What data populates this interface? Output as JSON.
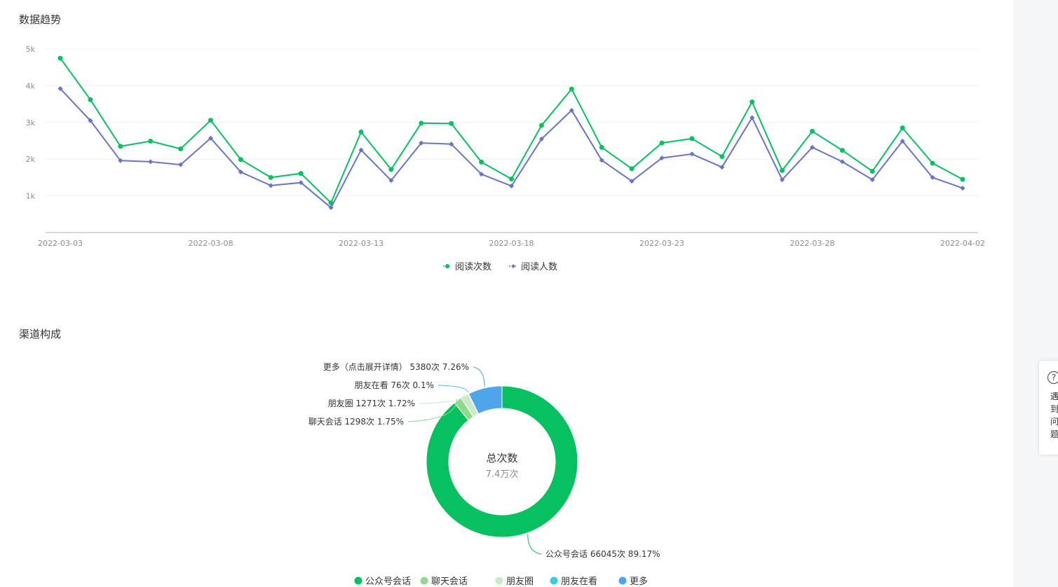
{
  "trend": {
    "title": "数据趋势"
  },
  "channel": {
    "title": "渠道构成"
  },
  "help": {
    "text": "遇到问题"
  },
  "chart_data": [
    {
      "type": "line",
      "y_ticks": [
        "1k",
        "2k",
        "3k",
        "4k",
        "5k"
      ],
      "ylim": [
        0,
        5000
      ],
      "x": [
        "2022-03-03",
        "2022-03-04",
        "2022-03-05",
        "2022-03-06",
        "2022-03-07",
        "2022-03-08",
        "2022-03-09",
        "2022-03-10",
        "2022-03-11",
        "2022-03-12",
        "2022-03-13",
        "2022-03-14",
        "2022-03-15",
        "2022-03-16",
        "2022-03-17",
        "2022-03-18",
        "2022-03-19",
        "2022-03-20",
        "2022-03-21",
        "2022-03-22",
        "2022-03-23",
        "2022-03-24",
        "2022-03-25",
        "2022-03-26",
        "2022-03-27",
        "2022-03-28",
        "2022-03-29",
        "2022-03-30",
        "2022-03-31",
        "2022-04-01",
        "2022-04-02"
      ],
      "x_tick_labels": [
        "2022-03-03",
        "2022-03-08",
        "2022-03-13",
        "2022-03-18",
        "2022-03-23",
        "2022-03-28",
        "2022-04-02"
      ],
      "x_tick_indices": [
        0,
        5,
        10,
        15,
        20,
        25,
        30
      ],
      "grid": true,
      "legend_position": "bottom",
      "series": [
        {
          "name": "阅读次数",
          "color": "#07c160",
          "marker": "circle",
          "values": [
            4750,
            3620,
            2350,
            2490,
            2280,
            3060,
            1990,
            1500,
            1610,
            810,
            2740,
            1720,
            2980,
            2970,
            1920,
            1460,
            2920,
            3910,
            2320,
            1740,
            2440,
            2560,
            2070,
            3560,
            1690,
            2760,
            2240,
            1670,
            2850,
            1890,
            1450
          ]
        },
        {
          "name": "阅读人数",
          "color": "#6a74c6",
          "marker": "diamond",
          "values": [
            3920,
            3050,
            1960,
            1930,
            1850,
            2570,
            1650,
            1280,
            1360,
            680,
            2250,
            1420,
            2440,
            2410,
            1590,
            1270,
            2550,
            3330,
            1970,
            1400,
            2030,
            2140,
            1780,
            3130,
            1440,
            2320,
            1930,
            1440,
            2490,
            1500,
            1210
          ]
        }
      ]
    },
    {
      "type": "pie",
      "donut": true,
      "center_title": "总次数",
      "center_value": "7.4万次",
      "legend_position": "bottom",
      "slices": [
        {
          "name": "公众号会话",
          "count": 66045,
          "percent": 89.17,
          "label": "公众号会话 66045次 89.17%",
          "color": "#07c160"
        },
        {
          "name": "聊天会话",
          "count": 1298,
          "percent": 1.75,
          "label": "聊天会话 1298次 1.75%",
          "color": "#91d88f"
        },
        {
          "name": "朋友圈",
          "count": 1271,
          "percent": 1.72,
          "label": "朋友圈 1271次 1.72%",
          "color": "#c9ecc8"
        },
        {
          "name": "朋友在看",
          "count": 76,
          "percent": 0.1,
          "label": "朋友在看 76次 0.1%",
          "color": "#3ec9e0"
        },
        {
          "name": "更多",
          "count": 5380,
          "percent": 7.26,
          "label": "更多（点击展开详情） 5380次 7.26%",
          "color": "#4ea5ea"
        }
      ]
    }
  ]
}
